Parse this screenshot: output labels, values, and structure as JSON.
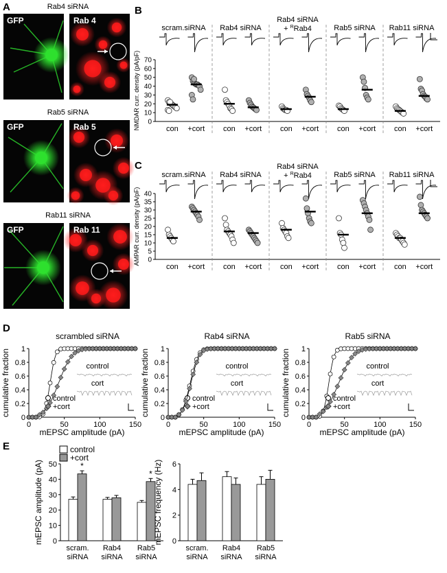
{
  "panel_letters": [
    "A",
    "B",
    "C",
    "D",
    "E"
  ],
  "panel_a": {
    "rows": [
      {
        "title": "Rab4 siRNA",
        "left_label": "GFP",
        "right_label": "Rab 4",
        "arrow": "left"
      },
      {
        "title": "Rab5 siRNA",
        "left_label": "GFP",
        "right_label": "Rab 5",
        "arrow": "right"
      },
      {
        "title": "Rab11 siRNA",
        "left_label": "GFP",
        "right_label": "Rab 11",
        "arrow": "right"
      }
    ],
    "colors": {
      "gfp": "#2ee02e",
      "rab": "#ff1a1a",
      "background": "#050505"
    }
  },
  "conditions_b": [
    "scram.siRNA",
    "Rab4 siRNA",
    "Rab4 siRNA",
    "Rab5 siRNA",
    "Rab11 siRNA"
  ],
  "condition_rescue_suffix": "+ ",
  "condition_rescue_sup": "R",
  "condition_rescue_tail": "Rab4",
  "group_labels": [
    "con",
    "+cort"
  ],
  "chart_data": [
    {
      "type": "scatter",
      "id": "B",
      "ylabel": "NMDAR curr. density (pA/pF)",
      "ylim": [
        0,
        70
      ],
      "yticks": [
        0,
        10,
        20,
        30,
        40,
        50,
        60,
        70
      ],
      "conditions": [
        "scram.siRNA",
        "Rab4 siRNA",
        "Rab4 siRNA + RRab4",
        "Rab5 siRNA",
        "Rab11 siRNA"
      ],
      "groups": [
        "con",
        "+cort"
      ],
      "points": [
        [
          [
            24,
            22,
            21,
            20,
            19,
            18,
            17,
            16,
            15,
            13,
            12,
            22
          ],
          [
            50,
            46,
            44,
            43,
            42,
            42,
            41,
            40,
            36,
            30,
            25,
            48
          ]
        ],
        [
          [
            36,
            24,
            22,
            20,
            18,
            15,
            14,
            12
          ],
          [
            24,
            21,
            19,
            17,
            16,
            15,
            14,
            13
          ]
        ],
        [
          [
            17,
            15,
            14,
            13,
            13,
            12
          ],
          [
            36,
            31,
            29,
            27,
            24,
            22
          ]
        ],
        [
          [
            18,
            17,
            15,
            14,
            13,
            12
          ],
          [
            50,
            45,
            38,
            30,
            27,
            25
          ]
        ],
        [
          [
            17,
            15,
            14,
            13,
            12,
            11,
            10,
            9
          ],
          [
            48,
            37,
            35,
            31,
            29,
            28,
            26,
            25
          ]
        ]
      ],
      "means": [
        [
          19,
          42
        ],
        [
          20,
          16
        ],
        [
          14,
          28
        ],
        [
          14,
          36
        ],
        [
          12,
          29
        ]
      ],
      "groups_fill": [
        "#ffffff",
        "#b0b0b0"
      ]
    },
    {
      "type": "scatter",
      "id": "C",
      "ylabel": "AMPAR curr. density (pA/pF)",
      "ylim": [
        0,
        40
      ],
      "yticks": [
        0,
        5,
        10,
        15,
        20,
        25,
        30,
        35,
        40
      ],
      "conditions": [
        "scram.siRNA",
        "Rab4 siRNA",
        "Rab4 siRNA + RRab4",
        "Rab5 siRNA",
        "Rab11 siRNA"
      ],
      "groups": [
        "con",
        "+cort"
      ],
      "points": [
        [
          [
            18,
            15,
            14,
            13,
            12,
            11
          ],
          [
            32,
            31,
            30,
            29,
            28,
            27,
            26,
            24
          ]
        ],
        [
          [
            25,
            21,
            18,
            17,
            16,
            15,
            14,
            12,
            10
          ],
          [
            18,
            17,
            16,
            15,
            14,
            13,
            12,
            11,
            10
          ]
        ],
        [
          [
            22,
            19,
            18,
            17,
            16,
            14,
            13
          ],
          [
            37,
            31,
            28,
            25,
            23,
            22
          ]
        ],
        [
          [
            25,
            16,
            15,
            12,
            10,
            7
          ],
          [
            36,
            34,
            32,
            30,
            28,
            26,
            24,
            18
          ]
        ],
        [
          [
            16,
            15,
            14,
            13,
            13,
            12,
            11,
            10,
            9
          ],
          [
            38,
            33,
            30,
            29,
            28,
            27,
            26,
            25
          ]
        ]
      ],
      "means": [
        [
          13,
          29
        ],
        [
          17,
          16
        ],
        [
          18,
          29
        ],
        [
          15,
          28
        ],
        [
          13,
          28
        ]
      ],
      "groups_fill": [
        "#ffffff",
        "#b0b0b0"
      ]
    },
    {
      "type": "line",
      "id": "D1",
      "title": "scrambled siRNA",
      "xlabel": "mEPSC amplitude (pA)",
      "ylabel": "cumulative fraction",
      "xlim": [
        0,
        150
      ],
      "ylim": [
        0,
        1
      ],
      "xticks": [
        0,
        50,
        100,
        150
      ],
      "yticks": [
        0,
        0.2,
        0.4,
        0.6,
        0.8,
        1
      ],
      "series": [
        {
          "name": "control",
          "mu": 30,
          "sigma": 6,
          "marker": "circle"
        },
        {
          "name": "+cort",
          "mu": 42,
          "sigma": 15,
          "marker": "diamond"
        }
      ],
      "inset": [
        "control",
        "cort"
      ]
    },
    {
      "type": "line",
      "id": "D2",
      "title": "Rab4 siRNA",
      "xlabel": "mEPSC amplitude (pA)",
      "ylabel": "cumulative fraction",
      "xlim": [
        0,
        150
      ],
      "ylim": [
        0,
        1
      ],
      "xticks": [
        0,
        50,
        100,
        150
      ],
      "yticks": [
        0,
        0.2,
        0.4,
        0.6,
        0.8,
        1
      ],
      "series": [
        {
          "name": "control",
          "mu": 31,
          "sigma": 9,
          "marker": "circle"
        },
        {
          "name": "+cort",
          "mu": 32,
          "sigma": 9.5,
          "marker": "diamond"
        }
      ],
      "inset": [
        "control",
        "cort"
      ]
    },
    {
      "type": "line",
      "id": "D3",
      "title": "Rab5 siRNA",
      "xlabel": "mEPSC amplitude (pA)",
      "ylabel": "cumulative fraction",
      "xlim": [
        0,
        150
      ],
      "ylim": [
        0,
        1
      ],
      "xticks": [
        0,
        50,
        100,
        150
      ],
      "yticks": [
        0,
        0.2,
        0.4,
        0.6,
        0.8,
        1
      ],
      "series": [
        {
          "name": "control",
          "mu": 28,
          "sigma": 6,
          "marker": "circle"
        },
        {
          "name": "+cort",
          "mu": 42,
          "sigma": 16,
          "marker": "diamond"
        }
      ],
      "inset": [
        "control",
        "cort"
      ]
    },
    {
      "type": "bar",
      "id": "E1",
      "ylabel": "mEPSC amplitude (pA)",
      "ylim": [
        0,
        50
      ],
      "yticks": [
        0,
        10,
        20,
        30,
        40,
        50
      ],
      "categories": [
        "scram.\nsiRNA",
        "Rab4\nsiRNA",
        "Rab5\nsiRNA"
      ],
      "series": [
        {
          "name": "control",
          "values": [
            27,
            27,
            25
          ],
          "errors": [
            1.5,
            1.2,
            1.2
          ],
          "color": "#ffffff"
        },
        {
          "name": "+cort",
          "values": [
            43.5,
            28,
            38.5
          ],
          "errors": [
            2,
            1.5,
            2
          ],
          "color": "#999999"
        }
      ],
      "significance": [
        true,
        false,
        true
      ],
      "sig_symbol": "*"
    },
    {
      "type": "bar",
      "id": "E2",
      "ylabel": "mEPSC frequency (Hz)",
      "ylim": [
        0,
        6
      ],
      "yticks": [
        0,
        2,
        4,
        6
      ],
      "categories": [
        "scram.\nsiRNA",
        "Rab4\nsiRNA",
        "Rab5\nsiRNA"
      ],
      "series": [
        {
          "name": "control",
          "values": [
            4.4,
            5.0,
            4.4
          ],
          "errors": [
            0.4,
            0.4,
            0.6
          ],
          "color": "#ffffff"
        },
        {
          "name": "+cort",
          "values": [
            4.7,
            4.4,
            4.8
          ],
          "errors": [
            0.6,
            0.5,
            0.7
          ],
          "color": "#999999"
        }
      ]
    }
  ],
  "legend_e": [
    "control",
    "+cort"
  ]
}
